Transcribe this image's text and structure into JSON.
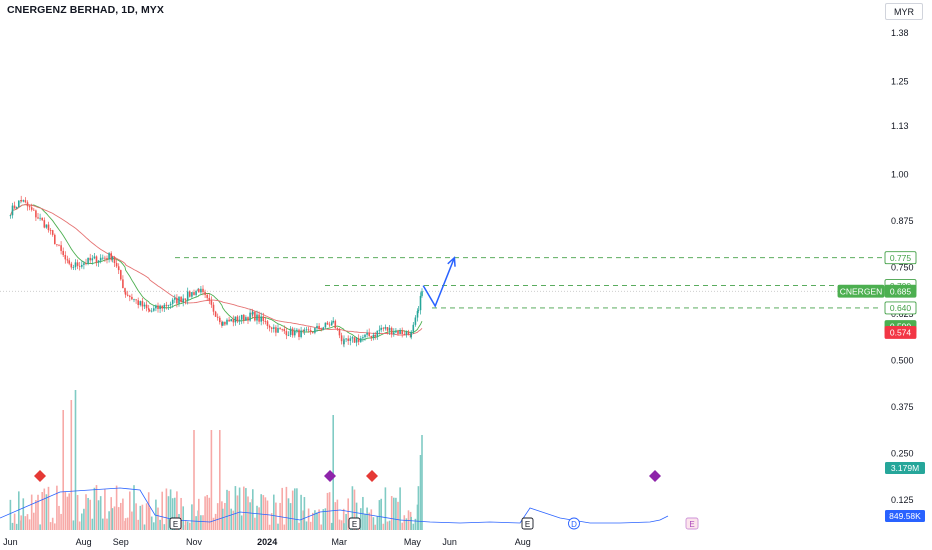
{
  "header": {
    "title": "CNERGENZ BERHAD, 1D, MYX",
    "currency": "MYR"
  },
  "colors": {
    "up": "#26a69a",
    "down": "#ef5350",
    "ma_fast": "#4caf50",
    "ma_slow": "#e57373",
    "dashed_level": "#43a047",
    "projection": "#2962ff",
    "volume_ma": "#2962ff",
    "volume_up": "#80cbc4",
    "volume_down": "#f7a9a7"
  },
  "chart_data": {
    "type": "candlestick",
    "title": "CNERGENZ BERHAD, 1D, MYX",
    "y_axis": {
      "ticks": [
        "1.38",
        "1.25",
        "1.13",
        "1.00",
        "0.875",
        "0.750",
        "0.625",
        "0.500",
        "0.375",
        "0.250",
        "0.125"
      ],
      "range": [
        0.05,
        1.42
      ]
    },
    "x_axis": {
      "ticks": [
        "Jun",
        "Aug",
        "Sep",
        "Nov",
        "2024",
        "Mar",
        "May",
        "Jun",
        "Aug"
      ],
      "bold_tick": "2024"
    },
    "price_labels": [
      {
        "text": "0.775",
        "value": 0.775,
        "type": "level"
      },
      {
        "text": "0.700",
        "value": 0.7,
        "type": "level"
      },
      {
        "text": "CNERGEN",
        "value": 0.685,
        "type": "symbol"
      },
      {
        "text": "0.685",
        "value": 0.685,
        "type": "last"
      },
      {
        "text": "0.640",
        "value": 0.64,
        "type": "level"
      },
      {
        "text": "0.590",
        "value": 0.59,
        "type": "ma_fast"
      },
      {
        "text": "0.574",
        "value": 0.574,
        "type": "ma_slow"
      }
    ],
    "volume_labels": [
      {
        "text": "3.179M",
        "type": "volume"
      },
      {
        "text": "849.58K",
        "type": "volume_ma"
      }
    ],
    "horizontal_levels": [
      0.775,
      0.7,
      0.64
    ],
    "projection_path": [
      {
        "date": "2024-05-10",
        "price": 0.7
      },
      {
        "date": "2024-05-20",
        "price": 0.645
      },
      {
        "date": "2024-06-05",
        "price": 0.775
      }
    ],
    "events": {
      "earnings": [
        "E",
        "E",
        "E",
        "E"
      ],
      "dividend": [
        "D"
      ],
      "future_earnings": [
        "E"
      ]
    },
    "price_path_keypoints": [
      {
        "date": "2023-06-01",
        "price": 0.9
      },
      {
        "date": "2023-06-10",
        "price": 0.93
      },
      {
        "date": "2023-07-01",
        "price": 0.86
      },
      {
        "date": "2023-07-20",
        "price": 0.75
      },
      {
        "date": "2023-08-10",
        "price": 0.77
      },
      {
        "date": "2023-08-25",
        "price": 0.78
      },
      {
        "date": "2023-09-05",
        "price": 0.68
      },
      {
        "date": "2023-09-25",
        "price": 0.63
      },
      {
        "date": "2023-10-25",
        "price": 0.67
      },
      {
        "date": "2023-11-05",
        "price": 0.69
      },
      {
        "date": "2023-11-25",
        "price": 0.6
      },
      {
        "date": "2023-12-20",
        "price": 0.62
      },
      {
        "date": "2024-01-10",
        "price": 0.58
      },
      {
        "date": "2024-02-01",
        "price": 0.57
      },
      {
        "date": "2024-02-25",
        "price": 0.6
      },
      {
        "date": "2024-03-05",
        "price": 0.545
      },
      {
        "date": "2024-03-31",
        "price": 0.57
      },
      {
        "date": "2024-04-05",
        "price": 0.585
      },
      {
        "date": "2024-04-30",
        "price": 0.57
      },
      {
        "date": "2024-05-06",
        "price": 0.63
      },
      {
        "date": "2024-05-09",
        "price": 0.685
      }
    ]
  }
}
